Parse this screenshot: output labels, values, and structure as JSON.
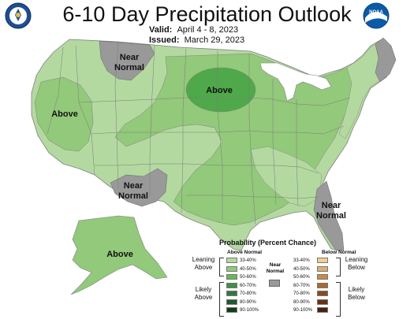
{
  "header": {
    "title": "6-10 Day Precipitation Outlook",
    "valid_label": "Valid:",
    "valid_value": "April 4 - 8, 2023",
    "issued_label": "Issued:",
    "issued_value": "March 29, 2023"
  },
  "logos": {
    "left": "doc-seal-icon",
    "right": "noaa-logo-icon",
    "right_text": "NOAA"
  },
  "map_labels": {
    "near_normal_nw_1": "Near",
    "near_normal_nw_2": "Normal",
    "above_west": "Above",
    "above_midwest": "Above",
    "near_normal_sw_1": "Near",
    "near_normal_sw_2": "Normal",
    "near_normal_se_1": "Near",
    "near_normal_se_2": "Normal",
    "above_alaska": "Above"
  },
  "legend": {
    "title": "Probability (Percent Chance)",
    "above_header": "Above Normal",
    "below_header": "Below Normal",
    "near_header_1": "Near",
    "near_header_2": "Normal",
    "above_rows": [
      "33-40%",
      "40-50%",
      "50-60%",
      "60-70%",
      "70-80%",
      "80-90%",
      "90-100%"
    ],
    "below_rows": [
      "33-40%",
      "40-50%",
      "50-60%",
      "60-70%",
      "70-80%",
      "80-90%",
      "90-100%"
    ],
    "leaning_above_1": "Leaning",
    "leaning_above_2": "Above",
    "likely_above_1": "Likely",
    "likely_above_2": "Above",
    "leaning_below_1": "Leaning",
    "leaning_below_2": "Below",
    "likely_below_1": "Likely",
    "likely_below_2": "Below"
  },
  "colors": {
    "above": [
      "#b3d9a0",
      "#93c97a",
      "#6ab756",
      "#3f8f45",
      "#2f7a3c",
      "#215a2a",
      "#123d18"
    ],
    "below": [
      "#f0d090",
      "#ddb070",
      "#c98a4a",
      "#a86a30",
      "#8a4a20",
      "#6a3010",
      "#4a2010"
    ],
    "near": "#999999"
  }
}
